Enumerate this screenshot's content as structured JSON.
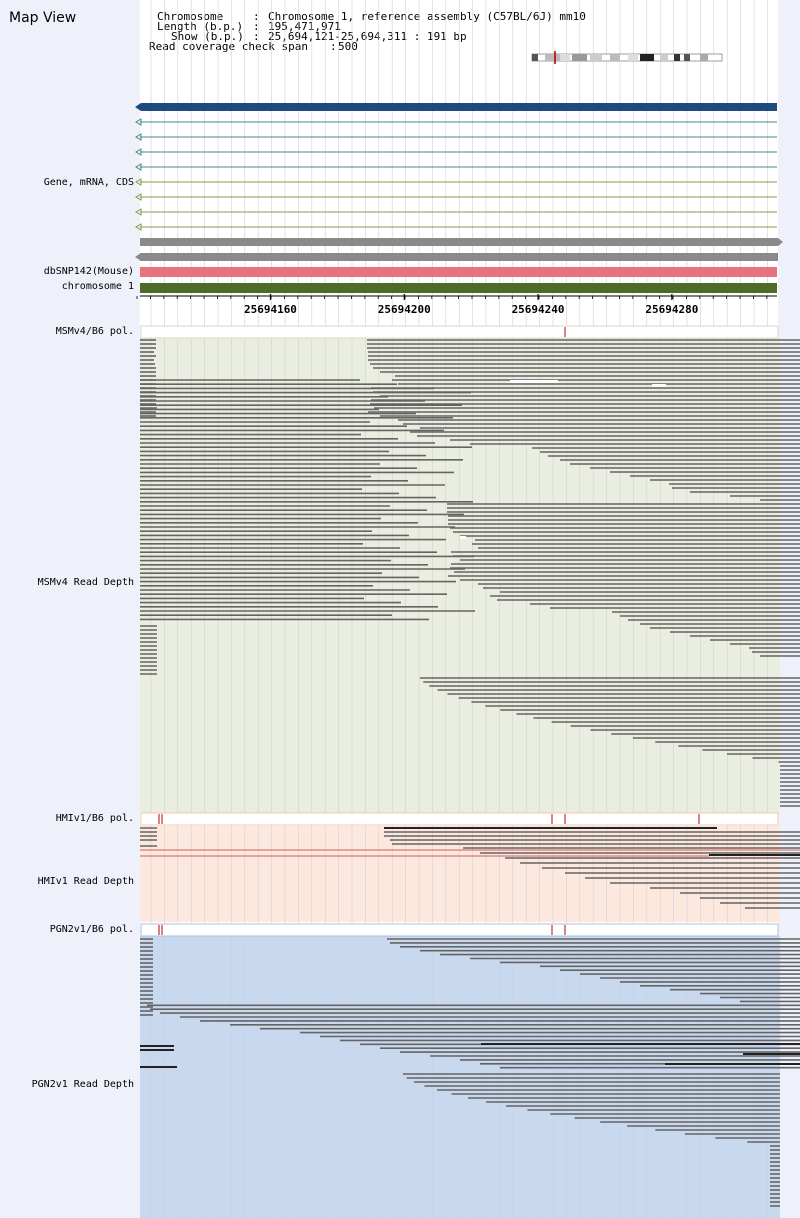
{
  "header": {
    "title": "Map View",
    "info_lines": [
      {
        "key": "Chromosome",
        "value": "Chromosome 1, reference assembly (C57BL/6J) mm10"
      },
      {
        "key": "Length (b.p.)",
        "value": "195,471,971"
      },
      {
        "key": "Show (b.p.)",
        "value": "25,694,121-25,694,311 : 191 bp"
      },
      {
        "key": "Read coverage check span",
        "value": "500"
      }
    ]
  },
  "tracks": {
    "gene": "Gene, mRNA, CDS",
    "snp": "dbSNP142(Mouse)",
    "chromosome": "chromosome 1",
    "msm_pol": "MSMv4/B6 pol.",
    "msm_depth": "MSMv4 Read Depth",
    "hmi_pol": "HMIv1/B6 pol.",
    "hmi_depth": "HMIv1 Read Depth",
    "pgn_pol": "PGN2v1/B6 pol.",
    "pgn_depth": "PGN2v1 Read Depth"
  },
  "ruler": {
    "ticks": [
      {
        "bp": 25694160,
        "label": "25694160"
      },
      {
        "bp": 25694200,
        "label": "25694200"
      },
      {
        "bp": 25694240,
        "label": "25694240"
      },
      {
        "bp": 25694280,
        "label": "25694280"
      }
    ]
  },
  "colors": {
    "gene_main": "#1f4a7e",
    "mrna": "#3c8c8c",
    "cds": "#8a9a4a",
    "snp": "#e8727e",
    "chromosome": "#4e6b2a",
    "msm_bg": "#eaeee0",
    "hmi_bg": "#fce8dc",
    "pgn_bg": "#c8d8ee",
    "read": "#646464",
    "pol_mark": "#c03030"
  }
}
